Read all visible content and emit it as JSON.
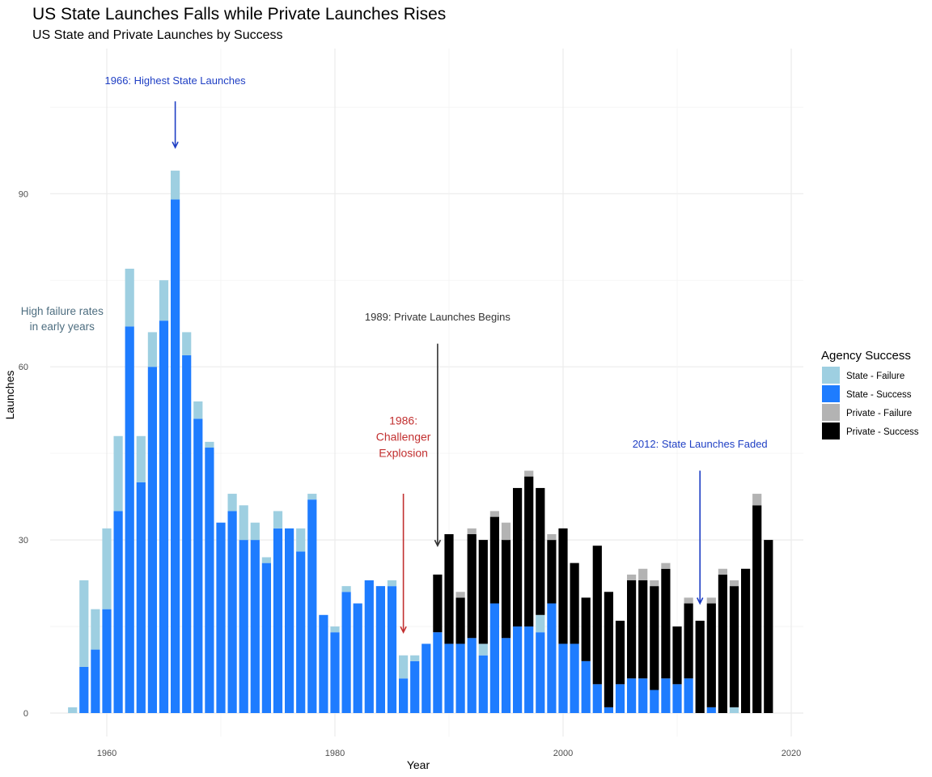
{
  "title": "US State Launches Falls while Private Launches Rises",
  "subtitle": "US State and Private Launches by Success",
  "chart_data": {
    "type": "bar",
    "stacked": true,
    "xlabel": "Year",
    "ylabel": "Launches",
    "xlim": [
      1957,
      2018
    ],
    "ylim": [
      0,
      100
    ],
    "x_ticks": [
      1960,
      1980,
      2000,
      2020
    ],
    "y_ticks": [
      0,
      30,
      60,
      90
    ],
    "grid": true,
    "legend": {
      "title": "Agency Success",
      "position": "right",
      "entries": [
        {
          "label": "State - Failure",
          "color": "#9ecfe1"
        },
        {
          "label": "State - Success",
          "color": "#1e7cff"
        },
        {
          "label": "Private - Failure",
          "color": "#b3b3b3"
        },
        {
          "label": "Private - Success",
          "color": "#000000"
        }
      ]
    },
    "stack_order": [
      "State - Success",
      "State - Failure",
      "Private - Success",
      "Private - Failure"
    ],
    "years": [
      1957,
      1958,
      1959,
      1960,
      1961,
      1962,
      1963,
      1964,
      1965,
      1966,
      1967,
      1968,
      1969,
      1970,
      1971,
      1972,
      1973,
      1974,
      1975,
      1976,
      1977,
      1978,
      1979,
      1980,
      1981,
      1982,
      1983,
      1984,
      1985,
      1986,
      1987,
      1988,
      1989,
      1990,
      1991,
      1992,
      1993,
      1994,
      1995,
      1996,
      1997,
      1998,
      1999,
      2000,
      2001,
      2002,
      2003,
      2004,
      2005,
      2006,
      2007,
      2008,
      2009,
      2010,
      2011,
      2012,
      2013,
      2014,
      2015,
      2016,
      2017,
      2018
    ],
    "series": [
      {
        "name": "State - Success",
        "values": [
          0,
          8,
          11,
          18,
          35,
          67,
          40,
          60,
          68,
          89,
          62,
          51,
          46,
          33,
          35,
          30,
          30,
          26,
          32,
          32,
          28,
          37,
          17,
          14,
          21,
          19,
          23,
          22,
          22,
          6,
          9,
          12,
          14,
          12,
          12,
          13,
          10,
          19,
          13,
          15,
          15,
          14,
          19,
          12,
          12,
          9,
          5,
          1,
          5,
          6,
          6,
          4,
          6,
          5,
          6,
          0,
          1,
          0,
          0,
          0,
          0,
          0
        ]
      },
      {
        "name": "State - Failure",
        "values": [
          1,
          15,
          7,
          14,
          13,
          10,
          8,
          6,
          7,
          5,
          4,
          3,
          1,
          0,
          3,
          6,
          3,
          1,
          3,
          0,
          4,
          1,
          0,
          1,
          1,
          0,
          0,
          0,
          1,
          4,
          1,
          0,
          0,
          0,
          0,
          0,
          2,
          0,
          0,
          0,
          0,
          3,
          0,
          0,
          0,
          0,
          0,
          0,
          0,
          0,
          0,
          0,
          0,
          0,
          0,
          0,
          0,
          0,
          1,
          0,
          0,
          0
        ]
      },
      {
        "name": "Private - Success",
        "values": [
          0,
          0,
          0,
          0,
          0,
          0,
          0,
          0,
          0,
          0,
          0,
          0,
          0,
          0,
          0,
          0,
          0,
          0,
          0,
          0,
          0,
          0,
          0,
          0,
          0,
          0,
          0,
          0,
          0,
          0,
          0,
          0,
          10,
          19,
          8,
          18,
          18,
          15,
          17,
          24,
          26,
          22,
          11,
          20,
          14,
          11,
          24,
          20,
          11,
          17,
          17,
          18,
          19,
          10,
          13,
          16,
          18,
          24,
          21,
          25,
          36,
          30
        ]
      },
      {
        "name": "Private - Failure",
        "values": [
          0,
          0,
          0,
          0,
          0,
          0,
          0,
          0,
          0,
          0,
          0,
          0,
          0,
          0,
          0,
          0,
          0,
          0,
          0,
          0,
          0,
          0,
          0,
          0,
          0,
          0,
          0,
          0,
          0,
          0,
          0,
          0,
          0,
          0,
          1,
          1,
          0,
          1,
          3,
          0,
          1,
          0,
          1,
          0,
          0,
          0,
          0,
          0,
          0,
          1,
          2,
          1,
          1,
          0,
          1,
          0,
          1,
          1,
          1,
          0,
          2,
          0
        ]
      }
    ],
    "annotations": [
      {
        "text": "1966: Highest State Launches",
        "x": 1966,
        "y": 109,
        "color": "#1f3fc4",
        "arrow_from": 106,
        "arrow_to": 98
      },
      {
        "text": "High failure rates in early years",
        "x": 1958,
        "y": 69,
        "color": "#4e6e80"
      },
      {
        "text": "1989: Private Launches Begins",
        "x": 1989,
        "y": 68,
        "color": "#333333",
        "arrow_from": 64,
        "arrow_to": 29
      },
      {
        "text": "1986: Challenger Explosion",
        "x": 1986,
        "y": 50,
        "color": "#c23030",
        "arrow_from": 38,
        "arrow_to": 14
      },
      {
        "text": "2012: State Launches Faded",
        "x": 2012,
        "y": 46,
        "color": "#1f3fc4",
        "arrow_from": 42,
        "arrow_to": 19
      }
    ]
  }
}
